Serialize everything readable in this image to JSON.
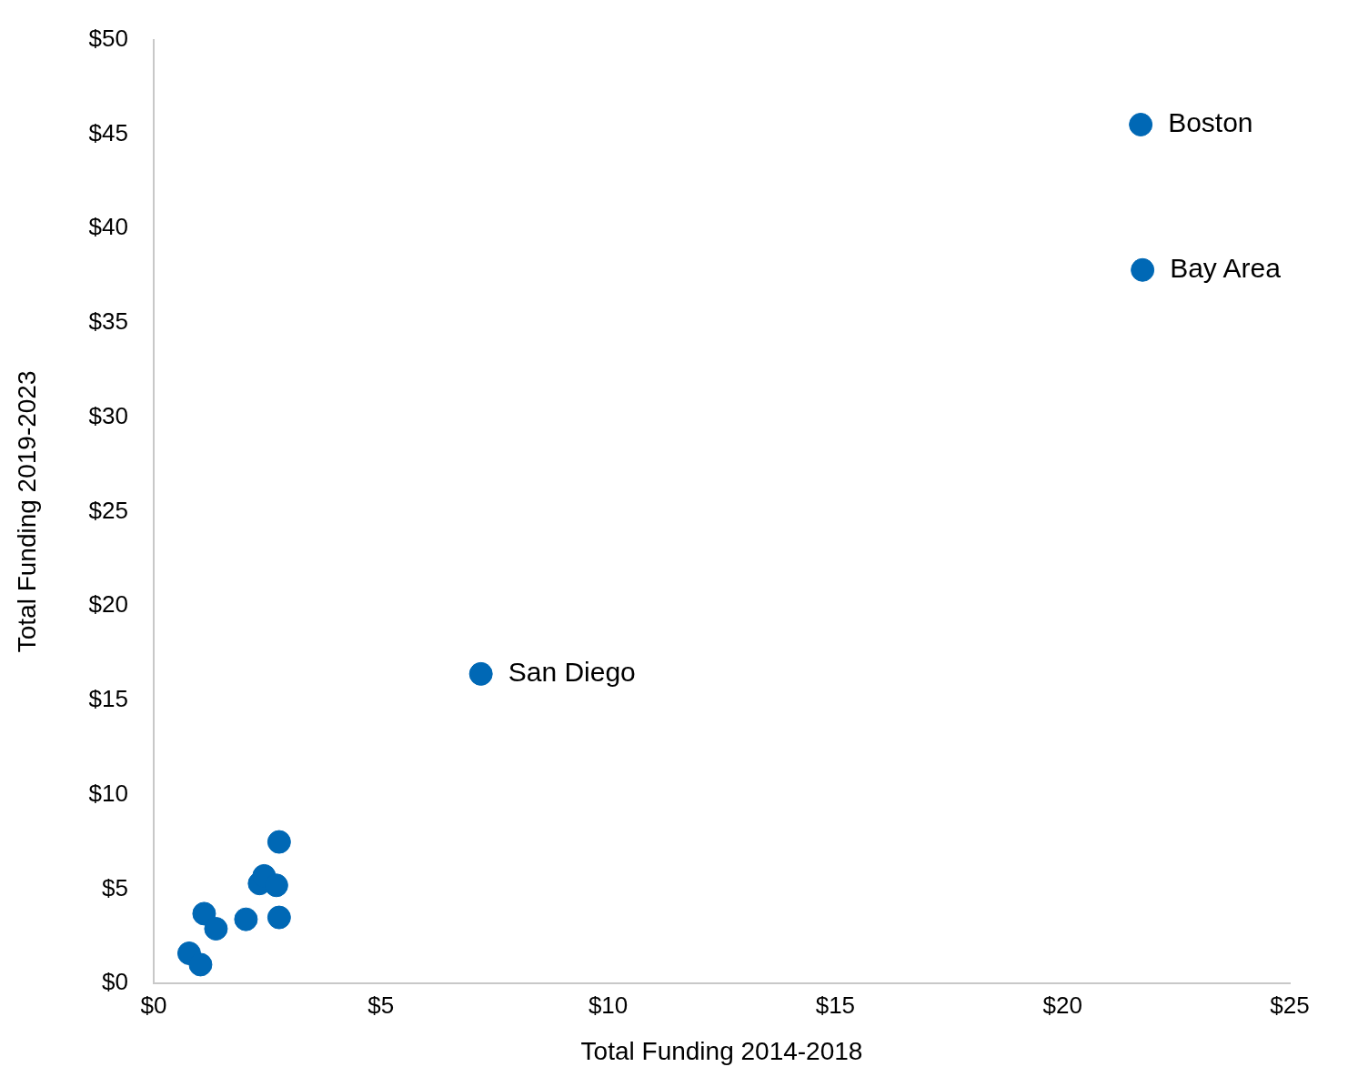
{
  "chart_data": {
    "type": "scatter",
    "xlabel": "Total Funding 2014-2018",
    "ylabel": "Total Funding 2019-2023",
    "x": [
      21.72,
      21.76,
      7.2,
      2.76,
      2.33,
      2.43,
      2.7,
      1.11,
      2.03,
      2.76,
      1.37,
      0.78,
      1.03
    ],
    "values": [
      45.5,
      37.8,
      16.4,
      7.5,
      5.3,
      5.7,
      5.2,
      3.7,
      3.4,
      3.5,
      2.9,
      1.6,
      1.0
    ],
    "color": "#0068b5",
    "marker": "circle",
    "grid": false,
    "legend": false,
    "xlim": [
      0,
      25
    ],
    "xticks": [
      {
        "value": 0,
        "label": "$0"
      },
      {
        "value": 5,
        "label": "$5"
      },
      {
        "value": 10,
        "label": "$10"
      },
      {
        "value": 15,
        "label": "$15"
      },
      {
        "value": 20,
        "label": "$20"
      },
      {
        "value": 25,
        "label": "$25"
      }
    ],
    "ylim": [
      0,
      50
    ],
    "yticks": [
      {
        "value": 0,
        "label": "$0"
      },
      {
        "value": 5,
        "label": "$5"
      },
      {
        "value": 10,
        "label": "$10"
      },
      {
        "value": 15,
        "label": "$15"
      },
      {
        "value": 20,
        "label": "$20"
      },
      {
        "value": 25,
        "label": "$25"
      },
      {
        "value": 30,
        "label": "$30"
      },
      {
        "value": 35,
        "label": "$35"
      },
      {
        "value": 40,
        "label": "$40"
      },
      {
        "value": 45,
        "label": "$45"
      },
      {
        "value": 50,
        "label": "$50"
      }
    ],
    "annotations": [
      {
        "text": "Boston",
        "x": 21.72,
        "y": 45.5
      },
      {
        "text": "Bay Area",
        "x": 21.76,
        "y": 37.8
      },
      {
        "text": "San Diego",
        "x": 7.2,
        "y": 16.4
      }
    ]
  }
}
